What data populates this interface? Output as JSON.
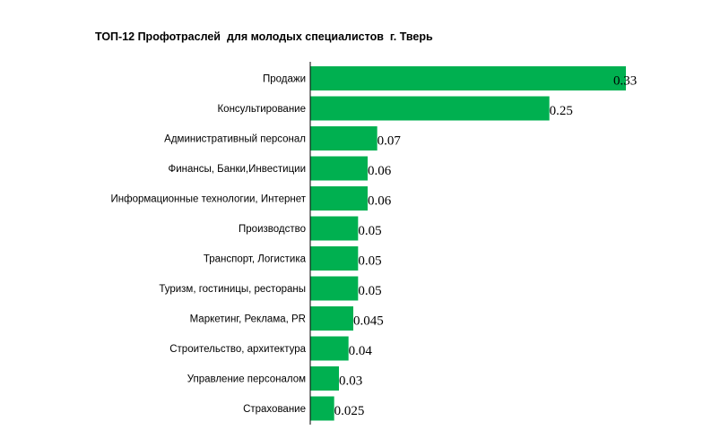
{
  "chart_data": {
    "type": "bar",
    "orientation": "horizontal",
    "title": "ТОП-12 Профотраслей  для молодых специалистов  г. Тверь",
    "categories": [
      "Продажи",
      "Консультирование",
      "Административный персонал",
      "Финансы, Банки,Инвестиции",
      "Информационные технологии, Интернет",
      "Производство",
      "Транспорт, Логистика",
      "Туризм, гостиницы, рестораны",
      "Маркетинг,  Реклама, PR",
      "Строительство, архитектура",
      "Управление персоналом",
      "Страхование"
    ],
    "values": [
      0.33,
      0.25,
      0.07,
      0.06,
      0.06,
      0.05,
      0.05,
      0.05,
      0.045,
      0.04,
      0.03,
      0.025
    ],
    "value_labels": [
      "0.33",
      "0.25",
      "0.07",
      "0.06",
      "0.06",
      "0.05",
      "0.05",
      "0.05",
      "0.045",
      "0.04",
      "0.03",
      "0.025"
    ],
    "xlim": [
      0,
      0.33
    ],
    "grid": false,
    "legend": "none",
    "bar_color": "#00b050"
  }
}
